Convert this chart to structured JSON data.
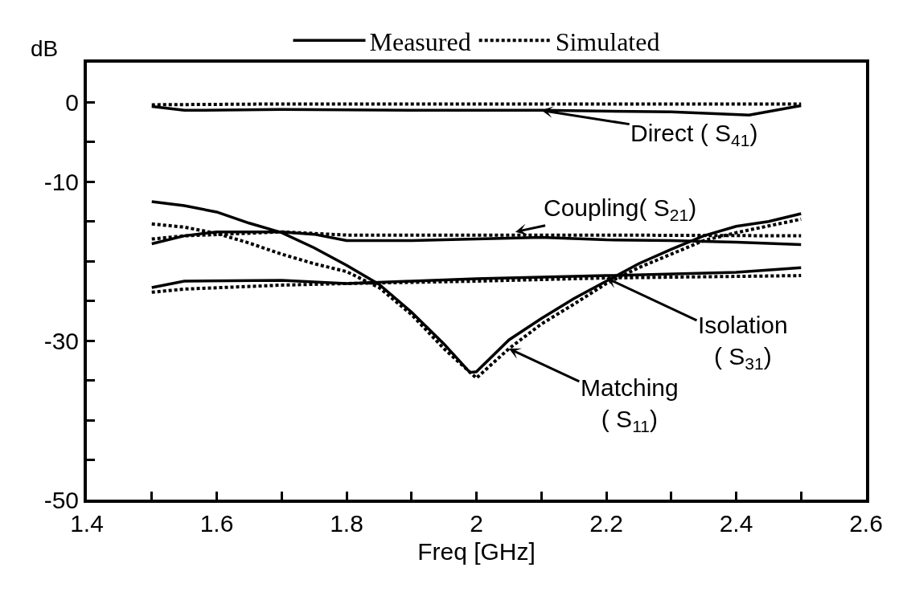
{
  "chart_data": {
    "type": "line",
    "xlabel": "Freq [GHz]",
    "ylabel": "dB",
    "xlim": [
      1.4,
      2.6
    ],
    "ylim": [
      -50,
      5
    ],
    "xticks": [
      1.4,
      {
        "value": 1.5,
        "label": null
      },
      1.6,
      {
        "value": 1.7,
        "label": null
      },
      1.8,
      {
        "value": 1.9,
        "label": null
      },
      2,
      {
        "value": 2.1,
        "label": null
      },
      2.2,
      {
        "value": 2.3,
        "label": null
      },
      2.4,
      {
        "value": 2.5,
        "label": null
      },
      2.6
    ],
    "yticks": [
      0,
      {
        "value": -5,
        "label": null
      },
      -10,
      {
        "value": -15,
        "label": null
      },
      {
        "value": -20,
        "label": null
      },
      {
        "value": -25,
        "label": null
      },
      -30,
      {
        "value": -35,
        "label": null
      },
      {
        "value": -40,
        "label": null
      },
      {
        "value": -45,
        "label": null
      },
      -50
    ],
    "legend": "top",
    "series": [
      {
        "name": "Measured",
        "color": "#000000",
        "line_style": "solid",
        "x": [
          1.5,
          1.55,
          1.7,
          1.9,
          2.1,
          2.3,
          2.42,
          2.5
        ],
        "values": [
          -0.5,
          -1.0,
          -0.9,
          -1.0,
          -1.0,
          -1.2,
          -1.6,
          -0.4
        ]
      },
      {
        "name": "Simulated",
        "color": "#000000",
        "line_style": "dotted",
        "x": [
          1.5,
          1.7,
          2.0,
          2.3,
          2.5
        ],
        "values": [
          -0.3,
          -0.2,
          -0.2,
          -0.2,
          -0.2
        ]
      },
      {
        "color": "#000000",
        "line_style": "solid",
        "x": [
          1.5,
          1.55,
          1.6,
          1.7,
          1.75,
          1.8,
          1.9,
          2.0,
          2.1,
          2.2,
          2.3,
          2.4,
          2.5
        ],
        "values": [
          -17.8,
          -16.8,
          -16.3,
          -16.3,
          -16.6,
          -17.4,
          -17.4,
          -17.2,
          -17.0,
          -17.3,
          -17.4,
          -17.6,
          -17.9
        ]
      },
      {
        "color": "#000000",
        "line_style": "dotted",
        "x": [
          1.5,
          1.55,
          1.7,
          1.8,
          2.0,
          2.2,
          2.5
        ],
        "values": [
          -17.2,
          -16.8,
          -16.3,
          -16.7,
          -16.7,
          -16.7,
          -16.8
        ]
      },
      {
        "color": "#000000",
        "line_style": "solid",
        "x": [
          1.5,
          1.55,
          1.7,
          1.8,
          1.9,
          2.0,
          2.2,
          2.4,
          2.5
        ],
        "values": [
          -23.3,
          -22.5,
          -22.4,
          -22.8,
          -22.5,
          -22.2,
          -21.8,
          -21.4,
          -20.8
        ]
      },
      {
        "color": "#000000",
        "line_style": "dotted",
        "x": [
          1.5,
          1.55,
          1.7,
          1.8,
          2.0,
          2.2,
          2.5
        ],
        "values": [
          -23.9,
          -23.5,
          -23.0,
          -22.8,
          -22.5,
          -22.1,
          -21.8
        ]
      },
      {
        "color": "#000000",
        "line_style": "solid",
        "x": [
          1.5,
          1.55,
          1.6,
          1.65,
          1.7,
          1.75,
          1.8,
          1.85,
          1.9,
          1.95,
          1.99,
          2.0,
          2.05,
          2.1,
          2.15,
          2.2,
          2.25,
          2.3,
          2.35,
          2.4,
          2.45,
          2.5
        ],
        "values": [
          -12.5,
          -13.0,
          -13.8,
          -15.2,
          -16.4,
          -18.3,
          -20.5,
          -22.9,
          -26.4,
          -30.4,
          -34.0,
          -33.9,
          -29.9,
          -27.2,
          -24.7,
          -22.5,
          -20.3,
          -18.5,
          -16.8,
          -15.6,
          -15.0,
          -14.0
        ]
      },
      {
        "color": "#000000",
        "line_style": "dotted",
        "x": [
          1.5,
          1.55,
          1.6,
          1.65,
          1.7,
          1.75,
          1.8,
          1.85,
          1.9,
          1.95,
          2.0,
          2.05,
          2.1,
          2.15,
          2.2,
          2.25,
          2.3,
          2.35,
          2.4,
          2.5
        ],
        "values": [
          -15.3,
          -15.7,
          -16.5,
          -17.7,
          -19.1,
          -20.3,
          -21.3,
          -23.3,
          -26.7,
          -31.0,
          -34.7,
          -31.0,
          -27.9,
          -25.4,
          -22.8,
          -20.8,
          -19.1,
          -17.4,
          -16.4,
          -14.7
        ]
      }
    ],
    "annotations": [
      {
        "text": "Direct ( S$_{41}$)",
        "x": 2.1,
        "y": -1.0
      },
      {
        "text": "Coupling( S$_{21}$)",
        "x": 2.06,
        "y": -16.3
      },
      {
        "text": "Isolation\n( S$_{31}$)",
        "x": 2.2,
        "y": -22.1
      },
      {
        "text": "Matching\n( S$_{11}$)",
        "x": 2.05,
        "y": -31.0
      }
    ]
  }
}
